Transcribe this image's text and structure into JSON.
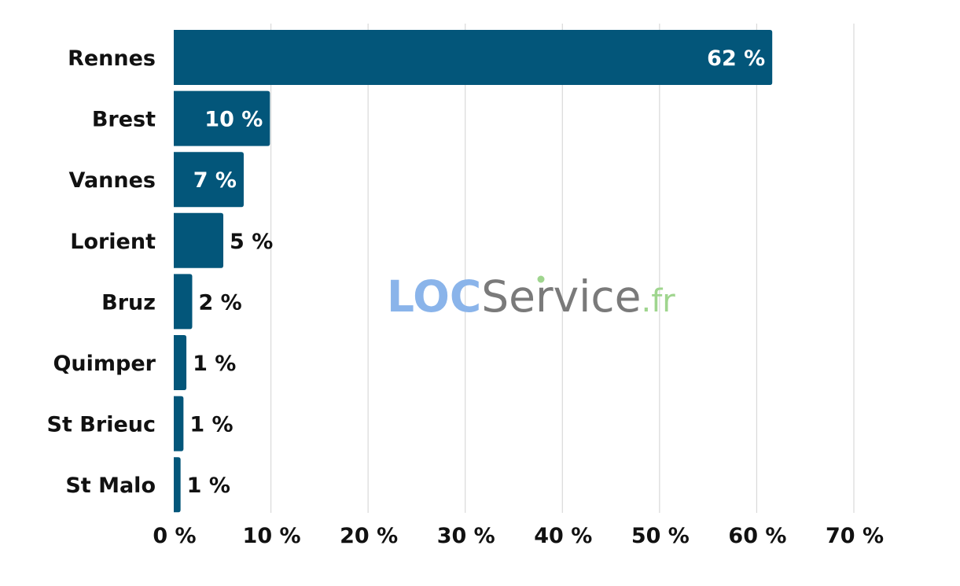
{
  "chart_data": {
    "type": "bar",
    "orientation": "horizontal",
    "title": "",
    "xlabel": "",
    "ylabel": "",
    "categories": [
      "Rennes",
      "Brest",
      "Vannes",
      "Lorient",
      "Bruz",
      "Quimper",
      "St Brieuc",
      "St Malo"
    ],
    "values": [
      61.6,
      9.9,
      7.2,
      5.1,
      1.9,
      1.3,
      1.0,
      0.7
    ],
    "value_labels": [
      "62 %",
      "10 %",
      "7 %",
      "5 %",
      "2 %",
      "1 %",
      "1 %",
      "1 %"
    ],
    "xlim": [
      0,
      70
    ],
    "x_ticks": [
      0,
      10,
      20,
      30,
      40,
      50,
      60,
      70
    ],
    "x_tick_labels": [
      "0 %",
      "10 %",
      "20 %",
      "30 %",
      "40 %",
      "50 %",
      "60 %",
      "70 %"
    ],
    "grid": true,
    "legend": "none",
    "bar_color": "#03567a",
    "grid_color": "#d9d9d9",
    "label_color": "#111111",
    "inside_label_color": "#ffffff"
  },
  "watermark": {
    "part1": "LOC",
    "part2": "Service",
    "part3": ".fr",
    "color_part1": "#8ab4ea",
    "color_part2": "#7a7a7a",
    "color_part3": "#9fd58e"
  }
}
